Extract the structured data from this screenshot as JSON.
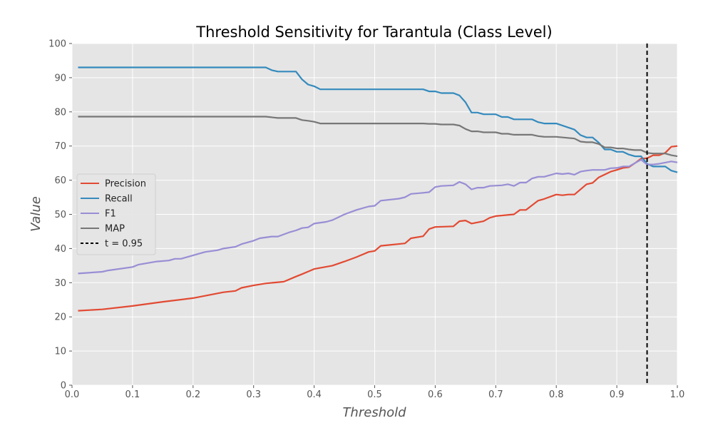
{
  "chart_data": {
    "type": "line",
    "title": "Threshold Sensitivity for Tarantula (Class Level)",
    "xlabel": "Threshold",
    "ylabel": "Value",
    "xlim": [
      0,
      1
    ],
    "ylim": [
      0,
      100
    ],
    "grid": true,
    "legend_position": "center-left",
    "x_ticks": [
      "0.0",
      "0.1",
      "0.2",
      "0.3",
      "0.4",
      "0.5",
      "0.6",
      "0.7",
      "0.8",
      "0.9",
      "1.0"
    ],
    "y_ticks": [
      "0",
      "10",
      "20",
      "30",
      "40",
      "50",
      "60",
      "70",
      "80",
      "90",
      "100"
    ],
    "series": [
      {
        "name": "Precision",
        "color": "#E24A33",
        "points": [
          [
            0.01,
            21.8
          ],
          [
            0.05,
            22.2
          ],
          [
            0.1,
            23.2
          ],
          [
            0.15,
            24.4
          ],
          [
            0.2,
            25.5
          ],
          [
            0.25,
            27.2
          ],
          [
            0.27,
            27.6
          ],
          [
            0.28,
            28.5
          ],
          [
            0.3,
            29.2
          ],
          [
            0.32,
            29.8
          ],
          [
            0.35,
            30.3
          ],
          [
            0.37,
            31.8
          ],
          [
            0.38,
            32.5
          ],
          [
            0.4,
            34.0
          ],
          [
            0.43,
            35.0
          ],
          [
            0.45,
            36.2
          ],
          [
            0.47,
            37.5
          ],
          [
            0.49,
            39.0
          ],
          [
            0.5,
            39.3
          ],
          [
            0.51,
            40.8
          ],
          [
            0.55,
            41.5
          ],
          [
            0.56,
            43.0
          ],
          [
            0.58,
            43.6
          ],
          [
            0.59,
            45.7
          ],
          [
            0.6,
            46.3
          ],
          [
            0.63,
            46.5
          ],
          [
            0.64,
            48.0
          ],
          [
            0.65,
            48.2
          ],
          [
            0.66,
            47.3
          ],
          [
            0.68,
            48.0
          ],
          [
            0.69,
            49.0
          ],
          [
            0.7,
            49.5
          ],
          [
            0.73,
            50.0
          ],
          [
            0.74,
            51.3
          ],
          [
            0.75,
            51.3
          ],
          [
            0.77,
            54.0
          ],
          [
            0.78,
            54.5
          ],
          [
            0.8,
            55.8
          ],
          [
            0.81,
            55.6
          ],
          [
            0.82,
            55.8
          ],
          [
            0.83,
            55.8
          ],
          [
            0.85,
            58.8
          ],
          [
            0.86,
            59.2
          ],
          [
            0.87,
            60.8
          ],
          [
            0.89,
            62.5
          ],
          [
            0.9,
            63.0
          ],
          [
            0.91,
            63.6
          ],
          [
            0.92,
            63.8
          ],
          [
            0.93,
            65.0
          ],
          [
            0.94,
            66.3
          ],
          [
            0.95,
            66.4
          ],
          [
            0.96,
            67.3
          ],
          [
            0.97,
            67.3
          ],
          [
            0.98,
            68.0
          ],
          [
            0.99,
            69.8
          ],
          [
            1.0,
            70.0
          ]
        ]
      },
      {
        "name": "Recall",
        "color": "#348ABD",
        "points": [
          [
            0.01,
            93.0
          ],
          [
            0.32,
            93.0
          ],
          [
            0.33,
            92.2
          ],
          [
            0.34,
            91.8
          ],
          [
            0.37,
            91.8
          ],
          [
            0.38,
            89.5
          ],
          [
            0.39,
            88.0
          ],
          [
            0.4,
            87.5
          ],
          [
            0.41,
            86.6
          ],
          [
            0.58,
            86.6
          ],
          [
            0.59,
            86.0
          ],
          [
            0.6,
            86.0
          ],
          [
            0.61,
            85.5
          ],
          [
            0.63,
            85.5
          ],
          [
            0.64,
            84.8
          ],
          [
            0.65,
            82.8
          ],
          [
            0.66,
            79.8
          ],
          [
            0.67,
            79.8
          ],
          [
            0.68,
            79.3
          ],
          [
            0.7,
            79.3
          ],
          [
            0.71,
            78.5
          ],
          [
            0.72,
            78.5
          ],
          [
            0.73,
            77.8
          ],
          [
            0.76,
            77.8
          ],
          [
            0.77,
            77.0
          ],
          [
            0.78,
            76.6
          ],
          [
            0.8,
            76.6
          ],
          [
            0.83,
            74.8
          ],
          [
            0.84,
            73.2
          ],
          [
            0.85,
            72.5
          ],
          [
            0.86,
            72.5
          ],
          [
            0.87,
            71.0
          ],
          [
            0.88,
            69.0
          ],
          [
            0.89,
            69.0
          ],
          [
            0.9,
            68.3
          ],
          [
            0.91,
            68.3
          ],
          [
            0.92,
            67.5
          ],
          [
            0.93,
            67.0
          ],
          [
            0.94,
            67.0
          ],
          [
            0.95,
            64.8
          ],
          [
            0.96,
            64.0
          ],
          [
            0.98,
            64.0
          ],
          [
            0.99,
            62.8
          ],
          [
            1.0,
            62.3
          ]
        ]
      },
      {
        "name": "F1",
        "color": "#988ED5",
        "points": [
          [
            0.01,
            32.7
          ],
          [
            0.05,
            33.2
          ],
          [
            0.06,
            33.6
          ],
          [
            0.1,
            34.6
          ],
          [
            0.11,
            35.3
          ],
          [
            0.14,
            36.2
          ],
          [
            0.16,
            36.5
          ],
          [
            0.17,
            37.0
          ],
          [
            0.18,
            37.0
          ],
          [
            0.21,
            38.5
          ],
          [
            0.22,
            39.0
          ],
          [
            0.24,
            39.5
          ],
          [
            0.25,
            40.0
          ],
          [
            0.27,
            40.5
          ],
          [
            0.28,
            41.3
          ],
          [
            0.3,
            42.3
          ],
          [
            0.31,
            43.0
          ],
          [
            0.33,
            43.5
          ],
          [
            0.34,
            43.5
          ],
          [
            0.36,
            44.8
          ],
          [
            0.37,
            45.3
          ],
          [
            0.38,
            46.0
          ],
          [
            0.39,
            46.2
          ],
          [
            0.4,
            47.3
          ],
          [
            0.42,
            47.8
          ],
          [
            0.43,
            48.3
          ],
          [
            0.45,
            50.0
          ],
          [
            0.47,
            51.3
          ],
          [
            0.49,
            52.3
          ],
          [
            0.5,
            52.5
          ],
          [
            0.51,
            54.0
          ],
          [
            0.54,
            54.6
          ],
          [
            0.55,
            55.0
          ],
          [
            0.56,
            56.0
          ],
          [
            0.58,
            56.3
          ],
          [
            0.59,
            56.5
          ],
          [
            0.6,
            58.0
          ],
          [
            0.61,
            58.3
          ],
          [
            0.63,
            58.5
          ],
          [
            0.64,
            59.5
          ],
          [
            0.65,
            58.8
          ],
          [
            0.66,
            57.3
          ],
          [
            0.67,
            57.8
          ],
          [
            0.68,
            57.8
          ],
          [
            0.69,
            58.3
          ],
          [
            0.71,
            58.5
          ],
          [
            0.72,
            58.8
          ],
          [
            0.73,
            58.3
          ],
          [
            0.74,
            59.3
          ],
          [
            0.75,
            59.3
          ],
          [
            0.76,
            60.5
          ],
          [
            0.77,
            61.0
          ],
          [
            0.78,
            61.0
          ],
          [
            0.8,
            62.0
          ],
          [
            0.81,
            61.8
          ],
          [
            0.82,
            62.0
          ],
          [
            0.83,
            61.6
          ],
          [
            0.84,
            62.5
          ],
          [
            0.85,
            62.8
          ],
          [
            0.86,
            63.0
          ],
          [
            0.88,
            63.0
          ],
          [
            0.89,
            63.5
          ],
          [
            0.9,
            63.6
          ],
          [
            0.91,
            64.0
          ],
          [
            0.92,
            64.0
          ],
          [
            0.93,
            65.0
          ],
          [
            0.94,
            66.0
          ],
          [
            0.95,
            64.6
          ],
          [
            0.96,
            64.6
          ],
          [
            0.97,
            64.8
          ],
          [
            0.99,
            65.5
          ],
          [
            1.0,
            65.2
          ]
        ]
      },
      {
        "name": "MAP",
        "color": "#777777",
        "points": [
          [
            0.01,
            78.6
          ],
          [
            0.32,
            78.6
          ],
          [
            0.34,
            78.2
          ],
          [
            0.37,
            78.2
          ],
          [
            0.38,
            77.6
          ],
          [
            0.39,
            77.4
          ],
          [
            0.4,
            77.1
          ],
          [
            0.41,
            76.6
          ],
          [
            0.58,
            76.6
          ],
          [
            0.59,
            76.5
          ],
          [
            0.6,
            76.5
          ],
          [
            0.61,
            76.3
          ],
          [
            0.63,
            76.3
          ],
          [
            0.64,
            76.0
          ],
          [
            0.65,
            75.0
          ],
          [
            0.66,
            74.3
          ],
          [
            0.67,
            74.3
          ],
          [
            0.68,
            74.0
          ],
          [
            0.7,
            74.0
          ],
          [
            0.71,
            73.6
          ],
          [
            0.72,
            73.6
          ],
          [
            0.73,
            73.3
          ],
          [
            0.76,
            73.3
          ],
          [
            0.77,
            72.9
          ],
          [
            0.78,
            72.7
          ],
          [
            0.8,
            72.7
          ],
          [
            0.83,
            72.2
          ],
          [
            0.84,
            71.3
          ],
          [
            0.85,
            71.1
          ],
          [
            0.86,
            71.1
          ],
          [
            0.87,
            70.6
          ],
          [
            0.88,
            69.6
          ],
          [
            0.89,
            69.6
          ],
          [
            0.9,
            69.3
          ],
          [
            0.91,
            69.3
          ],
          [
            0.92,
            69.0
          ],
          [
            0.93,
            68.8
          ],
          [
            0.94,
            68.8
          ],
          [
            0.95,
            68.0
          ],
          [
            0.96,
            67.8
          ],
          [
            0.98,
            67.8
          ],
          [
            0.99,
            67.3
          ],
          [
            1.0,
            67.0
          ]
        ]
      }
    ],
    "reference_line": {
      "name": "t = 0.95",
      "x": 0.95,
      "color": "#000000",
      "style": "dashed"
    }
  }
}
